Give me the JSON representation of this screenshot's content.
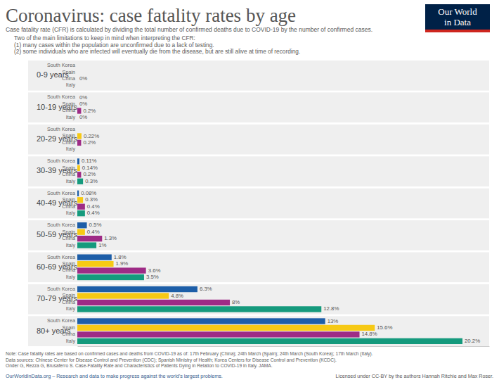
{
  "chart_data": {
    "type": "bar",
    "orientation": "horizontal",
    "title": "Coronavirus: case fatality rates by age",
    "subtitle": "Case fatality rate (CFR) is calculated by dividing the total number of confirmed deaths due to COVID-19 by the number of confirmed cases.",
    "notes": [
      "Two of the main limitations to keep in mind when interpreting the CFR:",
      "(1) many cases within the population are unconfirmed due to a lack of testing.",
      "(2) some individuals who are infected will eventually die from the disease, but are still alive at time of recording."
    ],
    "logo": [
      "Our World",
      "in Data"
    ],
    "footer": [
      "Note: Case fatality rates are based on confirmed cases and deaths from COVID-19 as of: 17th February (China); 24th March (Spain); 24th March (South Korea); 17th March (Italy).",
      "Data sources: Chinese Center for Disease Control and Prevention (CDC); Spanish Ministry of Health; Korea Centers for Disease Control and Prevention (KCDC).",
      "Onder G, Rezza G, Brusaferro S. Case-Fatality Rate and Characteristics of Patients Dying in Relation to COVID-19 in Italy. JAMA."
    ],
    "source_line": "OurWorldInData.org – Research and data to make progress against the world's largest problems.",
    "license": "Licensed under CC-BY by the authors Hannah Ritchie and Max Roser.",
    "categories": [
      "0-9 years",
      "10-19 years",
      "20-29 years",
      "30-39 years",
      "40-49 years",
      "50-59 years",
      "60-69 years",
      "70-79 years",
      "80+ years"
    ],
    "series": [
      {
        "name": "South Korea",
        "color": "#1d5ea8",
        "values": [
          null,
          0,
          null,
          0.11,
          0.08,
          0.5,
          1.8,
          6.3,
          13
        ],
        "value_labels": [
          null,
          "0%",
          null,
          "0.11%",
          "0.08%",
          "0.5%",
          "1.8%",
          "6.3%",
          "13%"
        ]
      },
      {
        "name": "Spain",
        "color": "#f6c915",
        "values": [
          null,
          0,
          0.22,
          0.14,
          0.3,
          0.4,
          1.9,
          4.8,
          15.6
        ],
        "value_labels": [
          null,
          "0%",
          "0.22%",
          "0.14%",
          "0.3%",
          "0.4%",
          "1.9%",
          "4.8%",
          "15.6%"
        ]
      },
      {
        "name": "China",
        "color": "#9e2b86",
        "values": [
          0,
          0.2,
          0.2,
          0.2,
          0.4,
          1.3,
          3.6,
          8,
          14.8
        ],
        "value_labels": [
          "0%",
          "0.2%",
          "0.2%",
          "0.2%",
          "0.4%",
          "1.3%",
          "3.6%",
          "8%",
          "14.8%"
        ]
      },
      {
        "name": "Italy",
        "color": "#159a7d",
        "values": [
          null,
          0,
          null,
          0.3,
          0.4,
          1,
          3.5,
          12.8,
          20.2
        ],
        "value_labels": [
          null,
          "0%",
          null,
          "0.3%",
          "0.4%",
          "1%",
          "3.5%",
          "12.8%",
          "20.2%"
        ]
      }
    ],
    "xlim": [
      0,
      21.6
    ],
    "data_labels": true,
    "tick_labels": false,
    "grid": false
  }
}
